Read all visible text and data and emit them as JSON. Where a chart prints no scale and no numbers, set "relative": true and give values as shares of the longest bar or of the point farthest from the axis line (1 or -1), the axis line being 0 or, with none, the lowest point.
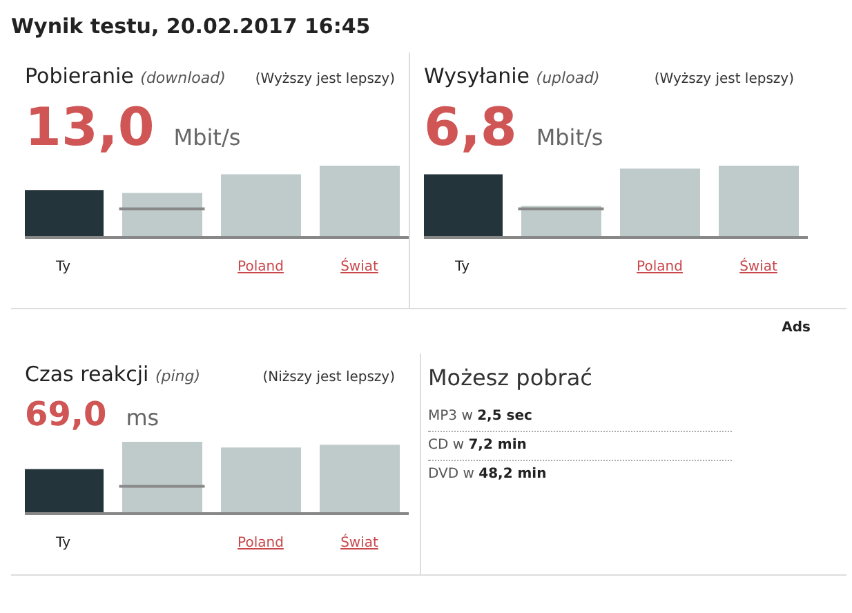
{
  "chart_data": [
    {
      "type": "other",
      "title": "Wynik testu, 20.02.2017 16:45"
    },
    {
      "type": "bar",
      "title": "Pobieranie (download)",
      "subtitle": "(Wyższy jest lepszy)",
      "annotations": [
        "13,0",
        "Mbit/s"
      ],
      "relative": true,
      "categories": [
        "Ty",
        null,
        "Poland",
        "Świat"
      ],
      "series": [
        {
          "type": "bar",
          "colors": [
            "#23343a",
            "#bfcbca",
            "#bfcbca",
            "#bfcbca"
          ],
          "values": [
            0.66,
            0.62,
            0.88,
            1
          ]
        }
      ],
      "ref_lines": [
        {
          "axis": "y",
          "value": 0.4,
          "color": "#888888"
        }
      ]
    },
    {
      "type": "bar",
      "title": "Wysyłanie (upload)",
      "subtitle": "(Wyższy jest lepszy)",
      "annotations": [
        "6,8",
        "Mbit/s"
      ],
      "relative": true,
      "categories": [
        "Ty",
        null,
        "Poland",
        "Świat"
      ],
      "series": [
        {
          "type": "bar",
          "colors": [
            "#23343a",
            "#bfcbca",
            "#bfcbca",
            "#bfcbca"
          ],
          "values": [
            0.88,
            0.44,
            0.96,
            1
          ]
        }
      ],
      "ref_lines": [
        {
          "axis": "y",
          "value": 0.4,
          "color": "#888888"
        }
      ]
    },
    {
      "type": "bar",
      "title": "Czas reakcji (ping)",
      "subtitle": "(Niższy jest lepszy)",
      "annotations": [
        "69,0",
        "ms"
      ],
      "relative": true,
      "categories": [
        "Ty",
        null,
        "Poland",
        "Świat"
      ],
      "series": [
        {
          "type": "bar",
          "colors": [
            "#23343a",
            "#bfcbca",
            "#bfcbca",
            "#bfcbca"
          ],
          "values": [
            0.62,
            1,
            0.92,
            0.96
          ]
        }
      ],
      "ref_lines": [
        {
          "axis": "y",
          "value": 0.38,
          "color": "#888888"
        }
      ]
    },
    {
      "type": "other",
      "title": "Możesz pobrać",
      "annotations": [
        "Ads",
        "MP3 w 2,5 sec",
        "CD w 7,2 min",
        "DVD w 48,2 min"
      ]
    }
  ]
}
